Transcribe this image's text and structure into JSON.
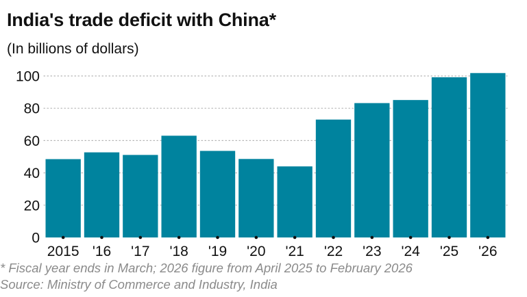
{
  "title": "India's trade deficit with China*",
  "subtitle": "(In billions of dollars)",
  "footnote": "* Fiscal year ends in March; 2026 figure from April 2025 to February 2026",
  "source": "Source: Ministry of Commerce and Industry, India",
  "colors": {
    "bar": "#00839e",
    "grid": "#b5b5b5",
    "text": "#111111",
    "footnote": "#8a8a8a"
  },
  "chart_data": {
    "type": "bar",
    "title": "India's trade deficit with China*",
    "subtitle": "(In billions of dollars)",
    "xlabel": "",
    "ylabel": "",
    "categories": [
      "2015",
      "'16",
      "'17",
      "'18",
      "'19",
      "'20",
      "'21",
      "'22",
      "'23",
      "'24",
      "'25",
      "'26"
    ],
    "values": [
      48.5,
      52.7,
      51.1,
      63.0,
      53.6,
      48.6,
      44.0,
      73.0,
      83.2,
      85.1,
      99.2,
      101.8
    ],
    "yticks": [
      0,
      20,
      40,
      60,
      80,
      100
    ],
    "ylim": [
      0,
      105
    ],
    "grid": true
  }
}
